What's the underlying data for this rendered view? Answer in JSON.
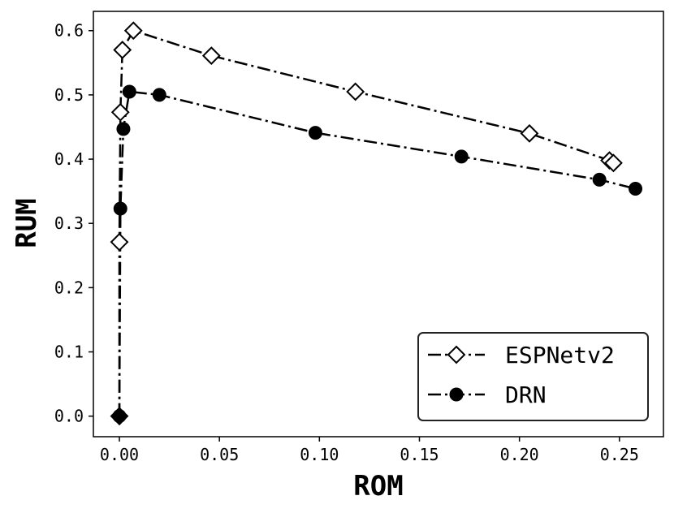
{
  "chart_data": {
    "type": "line",
    "title": "",
    "xlabel": "ROM",
    "ylabel": "RUM",
    "xlim": [
      -0.013,
      0.272
    ],
    "ylim": [
      -0.032,
      0.63
    ],
    "xticks": [
      0.0,
      0.05,
      0.1,
      0.15,
      0.2,
      0.25
    ],
    "xtick_labels": [
      "0.00",
      "0.05",
      "0.10",
      "0.15",
      "0.20",
      "0.25"
    ],
    "yticks": [
      0.0,
      0.1,
      0.2,
      0.3,
      0.4,
      0.5,
      0.6
    ],
    "ytick_labels": [
      "0.0",
      "0.1",
      "0.2",
      "0.3",
      "0.4",
      "0.5",
      "0.6"
    ],
    "grid": false,
    "legend_position": "bottom-right",
    "series": [
      {
        "name": "ESPNetv2",
        "marker": "diamond-open",
        "color": "#000000",
        "line_style": "dash-dot",
        "points": [
          {
            "x": 0.0,
            "y": 0.0
          },
          {
            "x": 0.0,
            "y": 0.271
          },
          {
            "x": 0.0005,
            "y": 0.473
          },
          {
            "x": 0.0015,
            "y": 0.57
          },
          {
            "x": 0.007,
            "y": 0.6
          },
          {
            "x": 0.046,
            "y": 0.561
          },
          {
            "x": 0.118,
            "y": 0.505
          },
          {
            "x": 0.205,
            "y": 0.44
          },
          {
            "x": 0.245,
            "y": 0.398
          },
          {
            "x": 0.247,
            "y": 0.394
          }
        ]
      },
      {
        "name": "DRN",
        "marker": "circle-filled",
        "color": "#000000",
        "line_style": "dash-dot",
        "points": [
          {
            "x": 0.0,
            "y": 0.0
          },
          {
            "x": 0.0005,
            "y": 0.323
          },
          {
            "x": 0.002,
            "y": 0.447
          },
          {
            "x": 0.005,
            "y": 0.505
          },
          {
            "x": 0.02,
            "y": 0.5
          },
          {
            "x": 0.098,
            "y": 0.441
          },
          {
            "x": 0.171,
            "y": 0.404
          },
          {
            "x": 0.24,
            "y": 0.368
          },
          {
            "x": 0.258,
            "y": 0.354
          }
        ]
      }
    ]
  }
}
